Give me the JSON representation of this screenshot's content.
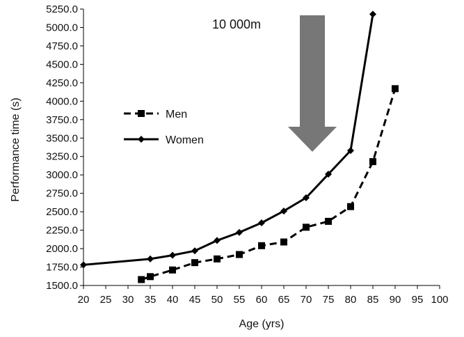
{
  "chart_data": {
    "type": "line",
    "title": "",
    "xlabel": "Age (yrs)",
    "ylabel": "Performance time (s)",
    "xlim": [
      20,
      100
    ],
    "ylim": [
      1500,
      5250
    ],
    "xticks": [
      20,
      25,
      30,
      35,
      40,
      45,
      50,
      55,
      60,
      65,
      70,
      75,
      80,
      85,
      90,
      95,
      100
    ],
    "yticks": [
      1500,
      1750,
      2000,
      2250,
      2500,
      2750,
      3000,
      3250,
      3500,
      3750,
      4000,
      4250,
      4500,
      4750,
      5000,
      5250
    ],
    "ytick_labels": [
      "1500.0",
      "1750.0",
      "2000.0",
      "2250.0",
      "2500.0",
      "2750.0",
      "3000.0",
      "3250.0",
      "3500.0",
      "3750.0",
      "4000.0",
      "4250.0",
      "4500.0",
      "4750.0",
      "5000.0",
      "5250.0"
    ],
    "grid": false,
    "legend_position": "upper-left",
    "annotation": "10 000m",
    "arrow_color": "#777777",
    "series": [
      {
        "name": "Men",
        "style": "dashed",
        "marker": "square",
        "color": "#000000",
        "x": [
          33,
          35,
          40,
          45,
          50,
          55,
          60,
          65,
          70,
          75,
          80,
          85,
          90
        ],
        "y": [
          1580,
          1620,
          1710,
          1810,
          1860,
          1920,
          2040,
          2090,
          2290,
          2370,
          2570,
          3180,
          4170
        ]
      },
      {
        "name": "Women",
        "style": "solid",
        "marker": "diamond",
        "color": "#000000",
        "x": [
          20,
          35,
          40,
          45,
          50,
          55,
          60,
          65,
          70,
          75,
          80,
          85
        ],
        "y": [
          1780,
          1860,
          1910,
          1970,
          2110,
          2220,
          2350,
          2510,
          2690,
          3010,
          3330,
          5180
        ]
      }
    ]
  }
}
